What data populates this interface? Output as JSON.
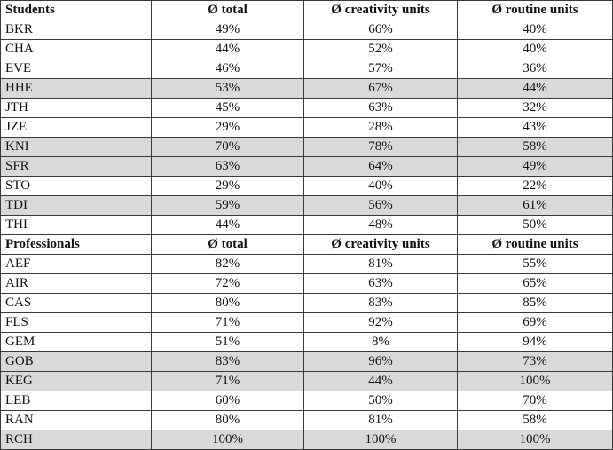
{
  "students": {
    "headers": [
      "Students",
      "Ø total",
      "Ø creativity units",
      "Ø routine units"
    ],
    "rows": [
      {
        "id": "BKR",
        "total": "49%",
        "creativity": "66%",
        "routine": "40%",
        "shaded": false
      },
      {
        "id": "CHA",
        "total": "44%",
        "creativity": "52%",
        "routine": "40%",
        "shaded": false
      },
      {
        "id": "EVE",
        "total": "46%",
        "creativity": "57%",
        "routine": "36%",
        "shaded": false
      },
      {
        "id": "HHE",
        "total": "53%",
        "creativity": "67%",
        "routine": "44%",
        "shaded": true
      },
      {
        "id": "JTH",
        "total": "45%",
        "creativity": "63%",
        "routine": "32%",
        "shaded": false
      },
      {
        "id": "JZE",
        "total": "29%",
        "creativity": "28%",
        "routine": "43%",
        "shaded": false
      },
      {
        "id": "KNI",
        "total": "70%",
        "creativity": "78%",
        "routine": "58%",
        "shaded": true
      },
      {
        "id": "SFR",
        "total": "63%",
        "creativity": "64%",
        "routine": "49%",
        "shaded": true
      },
      {
        "id": "STO",
        "total": "29%",
        "creativity": "40%",
        "routine": "22%",
        "shaded": false
      },
      {
        "id": "TDI",
        "total": "59%",
        "creativity": "56%",
        "routine": "61%",
        "shaded": true
      },
      {
        "id": "THI",
        "total": "44%",
        "creativity": "48%",
        "routine": "50%",
        "shaded": false
      }
    ]
  },
  "professionals": {
    "headers": [
      "Professionals",
      "Ø total",
      "Ø creativity units",
      "Ø routine units"
    ],
    "rows": [
      {
        "id": "AEF",
        "total": "82%",
        "creativity": "81%",
        "routine": "55%",
        "shaded": false
      },
      {
        "id": "AIR",
        "total": "72%",
        "creativity": "63%",
        "routine": "65%",
        "shaded": false
      },
      {
        "id": "CAS",
        "total": "80%",
        "creativity": "83%",
        "routine": "85%",
        "shaded": false
      },
      {
        "id": "FLS",
        "total": "71%",
        "creativity": "92%",
        "routine": "69%",
        "shaded": false
      },
      {
        "id": "GEM",
        "total": "51%",
        "creativity": "8%",
        "routine": "94%",
        "shaded": false
      },
      {
        "id": "GOB",
        "total": "83%",
        "creativity": "96%",
        "routine": "73%",
        "shaded": true
      },
      {
        "id": "KEG",
        "total": "71%",
        "creativity": "44%",
        "routine": "100%",
        "shaded": true
      },
      {
        "id": "LEB",
        "total": "60%",
        "creativity": "50%",
        "routine": "70%",
        "shaded": false
      },
      {
        "id": "RAN",
        "total": "80%",
        "creativity": "81%",
        "routine": "58%",
        "shaded": false
      },
      {
        "id": "RCH",
        "total": "100%",
        "creativity": "100%",
        "routine": "100%",
        "shaded": true
      }
    ]
  },
  "colors": {
    "shaded_row": "#d9d9d9",
    "border": "#3a3a3a",
    "text": "#111111"
  }
}
